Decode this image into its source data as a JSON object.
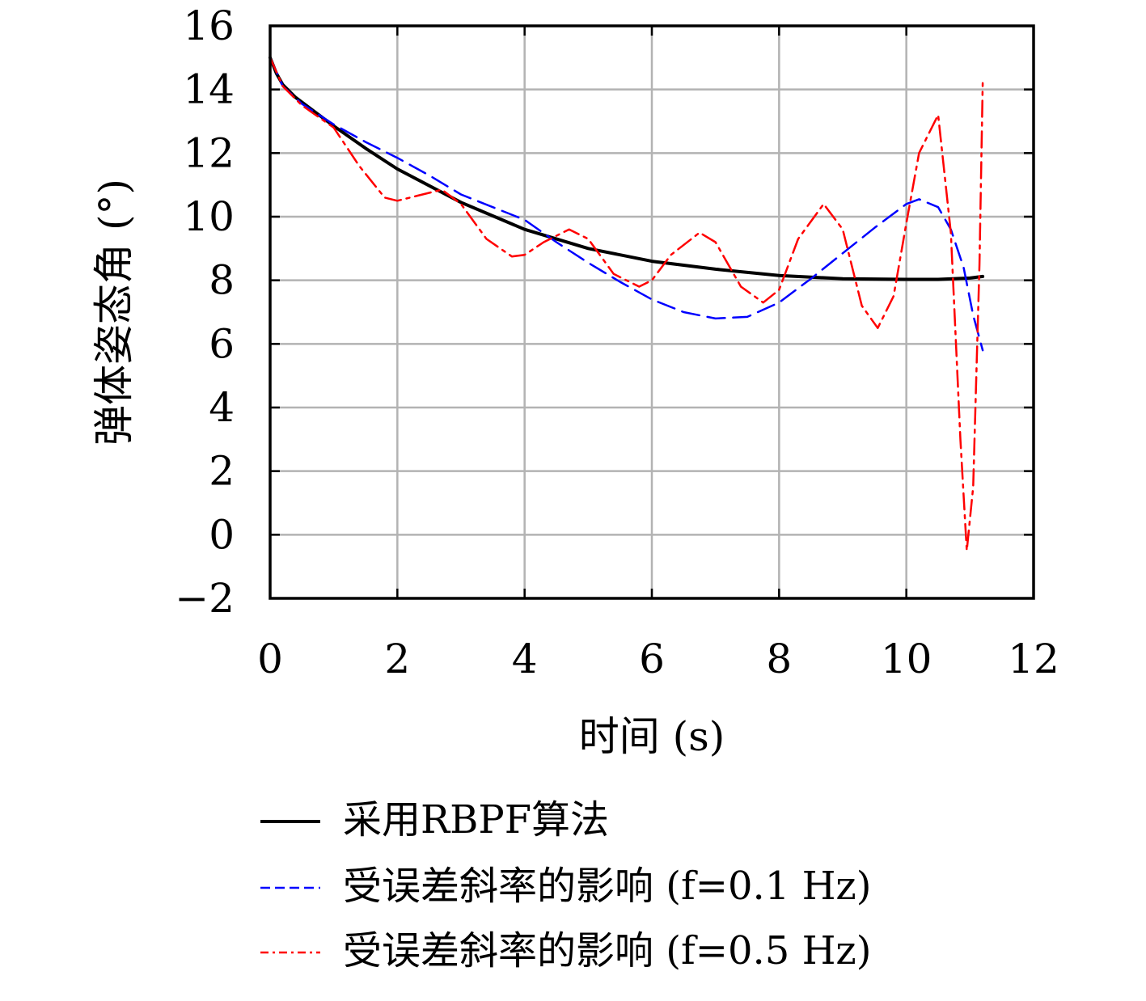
{
  "chart_data": {
    "type": "line",
    "title": "",
    "xlabel": "时间 (s)",
    "ylabel": "弹体姿态角 (°)",
    "xlim": [
      0,
      12
    ],
    "ylim": [
      -2,
      16
    ],
    "xticks": [
      0,
      2,
      4,
      6,
      8,
      10,
      12
    ],
    "yticks": [
      -2,
      0,
      2,
      4,
      6,
      8,
      10,
      12,
      14,
      16
    ],
    "xtick_labels": [
      "0",
      "2",
      "4",
      "6",
      "8",
      "10",
      "12"
    ],
    "ytick_labels": [
      "−2",
      "0",
      "2",
      "4",
      "6",
      "8",
      "10",
      "12",
      "14",
      "16"
    ],
    "grid": true,
    "legend_position": "bottom",
    "series": [
      {
        "name": "采用RBPF算法",
        "color": "#000000",
        "style": "solid",
        "x": [
          0,
          0.1,
          0.2,
          0.4,
          0.7,
          1.0,
          1.5,
          2.0,
          3.0,
          4.0,
          5.0,
          6.0,
          7.0,
          8.0,
          9.0,
          10.0,
          10.5,
          11.0,
          11.2
        ],
        "y": [
          15.0,
          14.5,
          14.15,
          13.75,
          13.3,
          12.85,
          12.15,
          11.5,
          10.45,
          9.6,
          9.0,
          8.6,
          8.35,
          8.15,
          8.05,
          8.03,
          8.03,
          8.07,
          8.12
        ]
      },
      {
        "name": "受误差斜率的影响 (f=0.1 Hz)",
        "color": "#0000ff",
        "style": "dashed",
        "x": [
          0,
          0.2,
          0.5,
          1.0,
          1.5,
          2.0,
          2.5,
          3.0,
          3.5,
          4.0,
          4.5,
          5.0,
          5.5,
          6.0,
          6.5,
          7.0,
          7.5,
          8.0,
          8.5,
          9.0,
          9.5,
          10.0,
          10.2,
          10.5,
          10.7,
          10.9,
          11.05,
          11.2
        ],
        "y": [
          15.0,
          14.1,
          13.55,
          12.9,
          12.35,
          11.85,
          11.3,
          10.7,
          10.3,
          9.9,
          9.2,
          8.55,
          7.95,
          7.4,
          7.0,
          6.8,
          6.85,
          7.3,
          8.05,
          8.85,
          9.65,
          10.4,
          10.55,
          10.3,
          9.6,
          8.4,
          6.9,
          5.8
        ]
      },
      {
        "name": "受误差斜率的影响 (f=0.5 Hz)",
        "color": "#ff0000",
        "style": "dashdot",
        "x": [
          0,
          0.2,
          0.5,
          1.0,
          1.4,
          1.8,
          2.0,
          2.3,
          2.7,
          3.0,
          3.4,
          3.8,
          4.0,
          4.3,
          4.7,
          5.0,
          5.4,
          5.8,
          6.0,
          6.3,
          6.75,
          7.0,
          7.4,
          7.75,
          8.0,
          8.3,
          8.7,
          9.0,
          9.3,
          9.55,
          9.8,
          10.0,
          10.2,
          10.5,
          10.7,
          10.85,
          10.95,
          11.05,
          11.15,
          11.2
        ],
        "y": [
          15.0,
          14.1,
          13.5,
          12.8,
          11.6,
          10.6,
          10.5,
          10.65,
          10.85,
          10.4,
          9.3,
          8.75,
          8.8,
          9.2,
          9.6,
          9.3,
          8.2,
          7.8,
          8.0,
          8.8,
          9.5,
          9.2,
          7.8,
          7.3,
          7.7,
          9.3,
          10.4,
          9.6,
          7.2,
          6.5,
          7.5,
          9.8,
          12.0,
          13.2,
          9.5,
          3.0,
          -0.5,
          1.5,
          8.5,
          14.2
        ]
      }
    ]
  }
}
